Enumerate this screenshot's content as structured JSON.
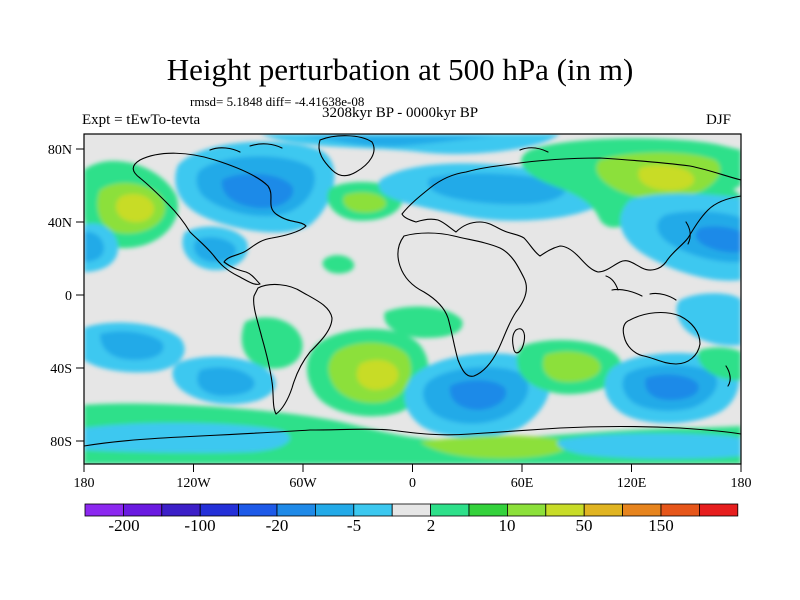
{
  "header": {
    "title": "Height perturbation at 500 hPa (in m)",
    "stats": "rmsd= 5.1848 diff= -4.41638e-08",
    "experiment": "Expt = tEwTo-tevta",
    "period": "3208kyr BP - 0000kyr BP",
    "season": "DJF"
  },
  "axes": {
    "x_ticks": [
      "180",
      "120W",
      "60W",
      "0",
      "60E",
      "120E",
      "180"
    ],
    "y_ticks": [
      "80N",
      "40N",
      "0",
      "40S",
      "80S"
    ]
  },
  "colorbar": {
    "colors": [
      "#8c28f0",
      "#6a1ae0",
      "#3c1fc8",
      "#2430d8",
      "#1e5ae8",
      "#1f8ae8",
      "#23aae8",
      "#3cc8f0",
      "#e6e6e6",
      "#2ee08a",
      "#34d23c",
      "#8ce03a",
      "#c8dc28",
      "#e0b422",
      "#e6841e",
      "#e6561a",
      "#e61e1e"
    ],
    "labels": [
      "-200",
      "-100",
      "-20",
      "-5",
      "2",
      "10",
      "50",
      "150"
    ]
  },
  "chart_data": {
    "type": "filled-contour-map",
    "projection": "cylindrical-equidistant",
    "variable": "500 hPa geopotential height perturbation",
    "units": "m",
    "xlim": [
      -180,
      180
    ],
    "ylim": [
      -90,
      90
    ],
    "levels": [
      "-200",
      "-100",
      "-20",
      "-5",
      "2",
      "10",
      "50",
      "150"
    ],
    "anomalies": [
      {
        "name": "north-pacific-high",
        "lon": -150,
        "lat": 45,
        "sign": "positive",
        "level": "10 to 50"
      },
      {
        "name": "north-america-low",
        "lon": -95,
        "lat": 55,
        "sign": "negative",
        "level": "-20 to -5"
      },
      {
        "name": "arctic-low",
        "lon": -30,
        "lat": 78,
        "sign": "negative",
        "level": "-5 to -2"
      },
      {
        "name": "north-atlantic-high",
        "lon": -20,
        "lat": 45,
        "sign": "positive",
        "level": "2 to 10"
      },
      {
        "name": "west-europe-low",
        "lon": 10,
        "lat": 55,
        "sign": "negative",
        "level": "-5 to -2"
      },
      {
        "name": "central-asia-high",
        "lon": 90,
        "lat": 62,
        "sign": "positive",
        "level": "10 to 50"
      },
      {
        "name": "east-asia-pacific-low",
        "lon": 150,
        "lat": 28,
        "sign": "negative",
        "level": "-20 to -5"
      },
      {
        "name": "east-pacific-low",
        "lon": -178,
        "lat": 28,
        "sign": "negative",
        "level": "-20 to -5"
      },
      {
        "name": "south-pacific-low",
        "lon": -150,
        "lat": -35,
        "sign": "negative",
        "level": "-20 to -5"
      },
      {
        "name": "south-atlantic-high",
        "lon": -20,
        "lat": -45,
        "sign": "positive",
        "level": "10 to 50"
      },
      {
        "name": "south-indian-low",
        "lon": 40,
        "lat": -52,
        "sign": "negative",
        "level": "-20 to -5"
      },
      {
        "name": "australia-south-low",
        "lon": 130,
        "lat": -50,
        "sign": "negative",
        "level": "-20 to -5"
      },
      {
        "name": "southern-ocean-positive-band",
        "lon": 20,
        "lat": -72,
        "sign": "positive",
        "level": "2 to 10"
      }
    ]
  }
}
